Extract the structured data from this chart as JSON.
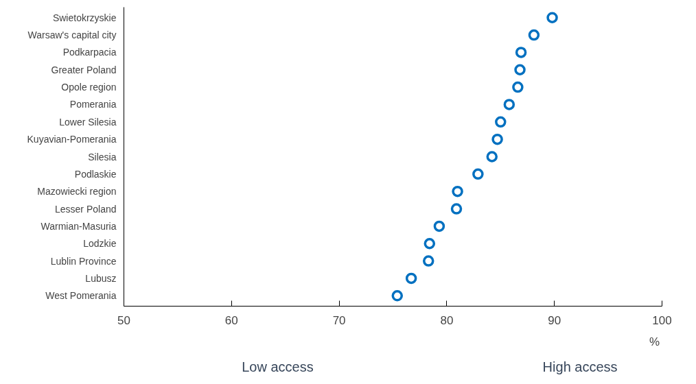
{
  "chart_data": {
    "type": "scatter",
    "xlabel": "%",
    "categories": [
      "Swietokrzyskie",
      "Warsaw's capital city",
      "Podkarpacia",
      "Greater Poland",
      "Opole region",
      "Pomerania",
      "Lower Silesia",
      "Kuyavian-Pomerania",
      "Silesia",
      "Podlaskie",
      "Mazowiecki region",
      "Lesser Poland",
      "Warmian-Masuria",
      "Lodzkie",
      "Lublin Province",
      "Lubusz",
      "West Pomerania"
    ],
    "orientation": "horizontal",
    "series": [
      {
        "color": "#0070c0",
        "values": [
          89.8,
          88.1,
          86.9,
          86.8,
          86.6,
          85.8,
          85.0,
          84.7,
          84.2,
          82.9,
          81.0,
          80.9,
          79.3,
          78.4,
          78.3,
          76.7,
          75.4
        ]
      }
    ],
    "xlim": [
      50,
      100
    ],
    "xticks": [
      50,
      60,
      70,
      80,
      90,
      100
    ],
    "marker": "circle",
    "grid": false,
    "annotations": [
      "Low access",
      "High access"
    ]
  }
}
